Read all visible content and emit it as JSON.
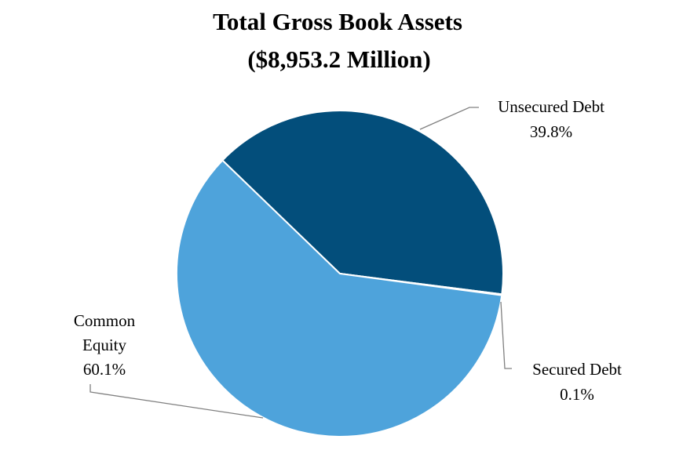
{
  "chart_data": {
    "type": "pie",
    "title": "Total Gross Book Assets",
    "subtitle": "($8,953.2 Million)",
    "slices": [
      {
        "label": "Unsecured Debt",
        "value": 39.8,
        "display": "39.8%",
        "color": "#034E7B"
      },
      {
        "label": "Secured Debt",
        "value": 0.1,
        "display": "0.1%",
        "color": "#1D3F5F"
      },
      {
        "label": "Common Equity",
        "value": 60.1,
        "display": "60.1%",
        "color": "#4EA3DB"
      }
    ]
  }
}
